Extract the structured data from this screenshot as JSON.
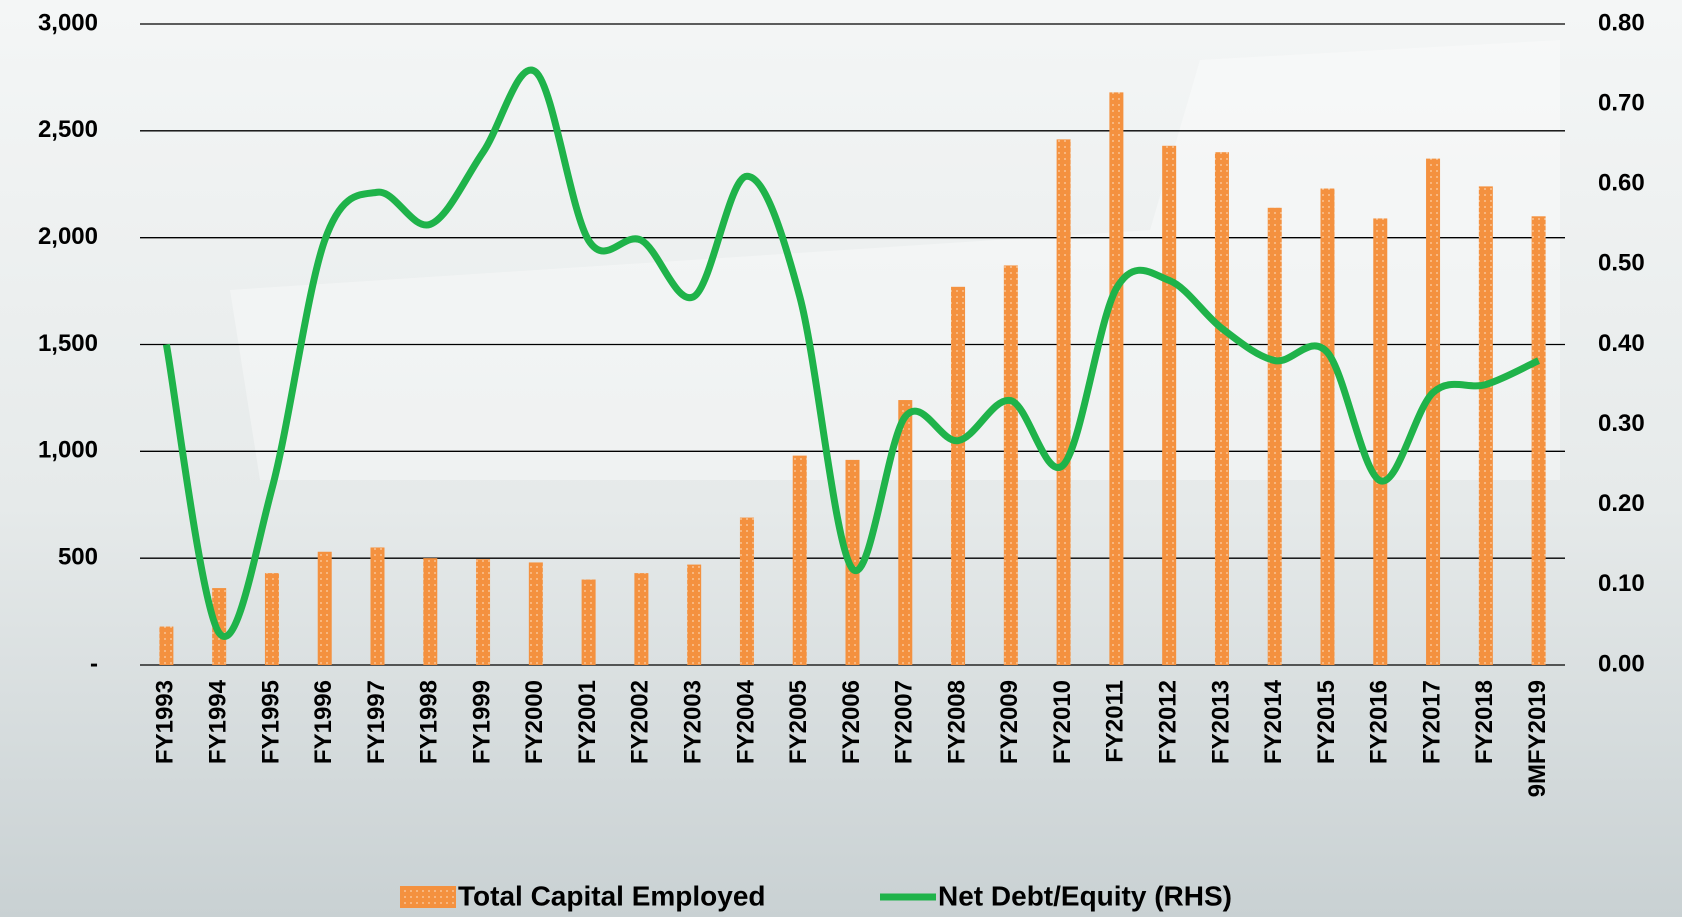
{
  "chart_data": {
    "type": "bar-line",
    "categories": [
      "FY1993",
      "FY1994",
      "FY1995",
      "FY1996",
      "FY1997",
      "FY1998",
      "FY1999",
      "FY2000",
      "FY2001",
      "FY2002",
      "FY2003",
      "FY2004",
      "FY2005",
      "FY2006",
      "FY2007",
      "FY2008",
      "FY2009",
      "FY2010",
      "FY2011",
      "FY2012",
      "FY2013",
      "FY2014",
      "FY2015",
      "FY2016",
      "FY2017",
      "FY2018",
      "9MFY2019"
    ],
    "series": [
      {
        "name": "Total Capital Employed",
        "type": "bar",
        "color": "#f4913f",
        "values": [
          180,
          360,
          430,
          530,
          550,
          500,
          495,
          480,
          400,
          430,
          470,
          690,
          980,
          960,
          1240,
          1770,
          1870,
          2460,
          2680,
          2430,
          2400,
          2140,
          2230,
          2090,
          2370,
          2240,
          2100
        ]
      },
      {
        "name": "Net Debt/Equity (RHS)",
        "type": "line",
        "axis": "y2",
        "color": "#1fb34a",
        "values": [
          0.4,
          0.04,
          0.22,
          0.53,
          0.59,
          0.55,
          0.64,
          0.74,
          0.53,
          0.53,
          0.46,
          0.61,
          0.46,
          0.12,
          0.31,
          0.28,
          0.33,
          0.25,
          0.47,
          0.48,
          0.42,
          0.38,
          0.39,
          0.23,
          0.34,
          0.35,
          0.38
        ]
      }
    ],
    "ylim": [
      0,
      3000
    ],
    "yticks": [
      {
        "value": 0,
        "label": "-"
      },
      500,
      {
        "value": 1000,
        "label": "1,000"
      },
      {
        "value": 1500,
        "label": "1,500"
      },
      {
        "value": 2000,
        "label": "2,000"
      },
      {
        "value": 2500,
        "label": "2,500"
      },
      {
        "value": 3000,
        "label": "3,000"
      }
    ],
    "y2lim": [
      0,
      0.8
    ],
    "y2ticks": [
      {
        "value": 0,
        "label": "0.00"
      },
      {
        "value": 0.1,
        "label": "0.10"
      },
      {
        "value": 0.2,
        "label": "0.20"
      },
      {
        "value": 0.3,
        "label": "0.30"
      },
      {
        "value": 0.4,
        "label": "0.40"
      },
      {
        "value": 0.5,
        "label": "0.50"
      },
      {
        "value": 0.6,
        "label": "0.60"
      },
      {
        "value": 0.7,
        "label": "0.70"
      },
      {
        "value": 0.8,
        "label": "0.80"
      }
    ],
    "grid": true
  }
}
